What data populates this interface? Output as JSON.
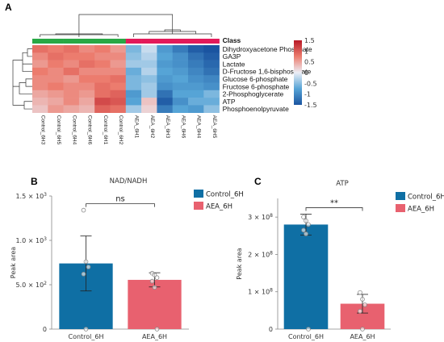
{
  "panels": {
    "a": "A",
    "b": "B",
    "c": "C"
  },
  "chart_data": [
    {
      "type": "heatmap",
      "panel": "A",
      "legend_title": "Class",
      "columns": [
        "Control_6H3",
        "Control_6H5",
        "Control_6H4",
        "Control_6H6",
        "Control_6H1",
        "Control_6H2",
        "AEA_6H1",
        "AEA_6H2",
        "AEA_6H3",
        "AEA_6H6",
        "AEA_6H4",
        "AEA_6H5"
      ],
      "column_groups": [
        "Control",
        "Control",
        "Control",
        "Control",
        "Control",
        "Control",
        "AEA",
        "AEA",
        "AEA",
        "AEA",
        "AEA",
        "AEA"
      ],
      "group_colors": {
        "Control": "#29a845",
        "AEA": "#e31a5a"
      },
      "rows": [
        "Dihydroxyacetone Phosphate",
        "GA3P",
        "Lactate",
        "D-Fructose 1,6-bisphosphate",
        "Glucose 6-phosphate",
        "Fructose 6-phosphate",
        "2-Phosphoglycerate",
        "ATP",
        "Phosphoenolpyruvate"
      ],
      "values": [
        [
          0.9,
          0.8,
          0.9,
          0.7,
          0.8,
          0.6,
          -0.6,
          -0.2,
          -0.9,
          -1.2,
          -1.5,
          -1.6
        ],
        [
          0.7,
          0.9,
          0.8,
          0.8,
          0.7,
          0.7,
          -0.5,
          -0.3,
          -0.8,
          -1.0,
          -1.3,
          -1.5
        ],
        [
          0.6,
          0.8,
          0.7,
          0.9,
          0.8,
          0.6,
          -0.4,
          -0.4,
          -0.9,
          -1.0,
          -1.2,
          -1.4
        ],
        [
          0.8,
          0.7,
          0.9,
          0.7,
          0.7,
          0.7,
          -0.7,
          -0.3,
          -0.8,
          -0.9,
          -1.1,
          -1.3
        ],
        [
          0.7,
          0.7,
          0.6,
          0.8,
          0.8,
          0.9,
          -0.6,
          -0.5,
          -0.9,
          -0.8,
          -1.0,
          -1.1
        ],
        [
          0.7,
          0.8,
          0.7,
          0.7,
          0.9,
          0.8,
          -0.6,
          -0.4,
          -1.0,
          -0.9,
          -0.9,
          -1.0
        ],
        [
          0.5,
          0.6,
          0.7,
          0.6,
          0.9,
          1.0,
          -0.9,
          -0.4,
          -1.3,
          -0.8,
          -0.8,
          -0.6
        ],
        [
          0.4,
          0.5,
          0.7,
          0.5,
          1.2,
          1.1,
          -0.8,
          0.3,
          -1.5,
          -1.0,
          -0.7,
          -0.7
        ],
        [
          0.3,
          0.6,
          0.5,
          0.4,
          1.0,
          0.9,
          -0.4,
          0.2,
          -1.2,
          -0.8,
          -0.9,
          -0.5
        ]
      ],
      "scale": {
        "min": -1.5,
        "max": 1.5,
        "ticks": [
          "1.5",
          "1",
          "0.5",
          "0",
          "-0.5",
          "-1",
          "-1.5"
        ]
      }
    },
    {
      "type": "bar",
      "panel": "B",
      "title": "NAD/NADH",
      "ylabel": "Peak area",
      "categories": [
        "Control_6H",
        "AEA_6H"
      ],
      "values": [
        740,
        555
      ],
      "errors": [
        310,
        80
      ],
      "points": [
        [
          1340,
          760,
          700,
          620,
          0
        ],
        [
          630,
          610,
          580,
          540,
          470,
          0
        ]
      ],
      "colors": [
        "#0f6fa4",
        "#e8616f"
      ],
      "ylim": [
        0,
        1500
      ],
      "yticks": [
        0,
        500,
        1000,
        1500
      ],
      "ytick_labels": [
        {
          "mantissa": "0",
          "exp": ""
        },
        {
          "mantissa": "5.0 × 10",
          "exp": "2"
        },
        {
          "mantissa": "1.0 × 10",
          "exp": "3"
        },
        {
          "mantissa": "1.5 × 10",
          "exp": "3"
        }
      ],
      "significance": "ns",
      "legend": [
        "Control_6H",
        "AEA_6H"
      ]
    },
    {
      "type": "bar",
      "panel": "C",
      "title": "ATP",
      "ylabel": "Peak area",
      "categories": [
        "Control_6H",
        "AEA_6H"
      ],
      "values": [
        280000000,
        68000000
      ],
      "errors": [
        28000000,
        25000000
      ],
      "points": [
        [
          300000000,
          290000000,
          280000000,
          265000000,
          255000000,
          0
        ],
        [
          98000000,
          80000000,
          65000000,
          48000000,
          0
        ]
      ],
      "colors": [
        "#0f6fa4",
        "#e8616f"
      ],
      "ylim": [
        0,
        350000000
      ],
      "yticks": [
        0,
        100000000,
        200000000,
        300000000
      ],
      "ytick_labels": [
        {
          "mantissa": "0",
          "exp": ""
        },
        {
          "mantissa": "1 × 10",
          "exp": "8"
        },
        {
          "mantissa": "2 × 10",
          "exp": "8"
        },
        {
          "mantissa": "3 × 10",
          "exp": "8"
        }
      ],
      "significance": "**",
      "legend": [
        "Control_6H",
        "AEA_6H"
      ]
    }
  ]
}
